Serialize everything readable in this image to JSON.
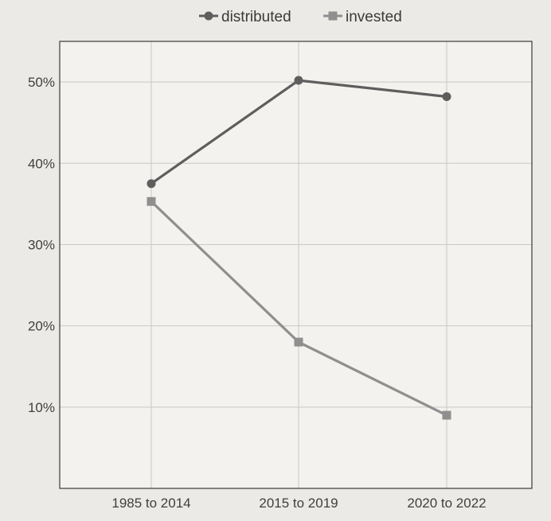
{
  "chart_data": {
    "type": "line",
    "categories": [
      "1985 to 2014",
      "2015 to 2019",
      "2020 to 2022"
    ],
    "series": [
      {
        "name": "distributed",
        "values": [
          37.5,
          50.2,
          48.2
        ],
        "color": "#5e5e5e",
        "marker": "circle"
      },
      {
        "name": "invested",
        "values": [
          35.3,
          18.0,
          9.0
        ],
        "color": "#8f8f8f",
        "marker": "square"
      }
    ],
    "yticks": [
      {
        "value": 10,
        "label": "10%"
      },
      {
        "value": 20,
        "label": "20%"
      },
      {
        "value": 30,
        "label": "30%"
      },
      {
        "value": 40,
        "label": "40%"
      },
      {
        "value": 50,
        "label": "50%"
      }
    ],
    "ylim": [
      0,
      55
    ],
    "grid": true,
    "legend_position": "top-center",
    "title": "",
    "xlabel": "",
    "ylabel": ""
  }
}
